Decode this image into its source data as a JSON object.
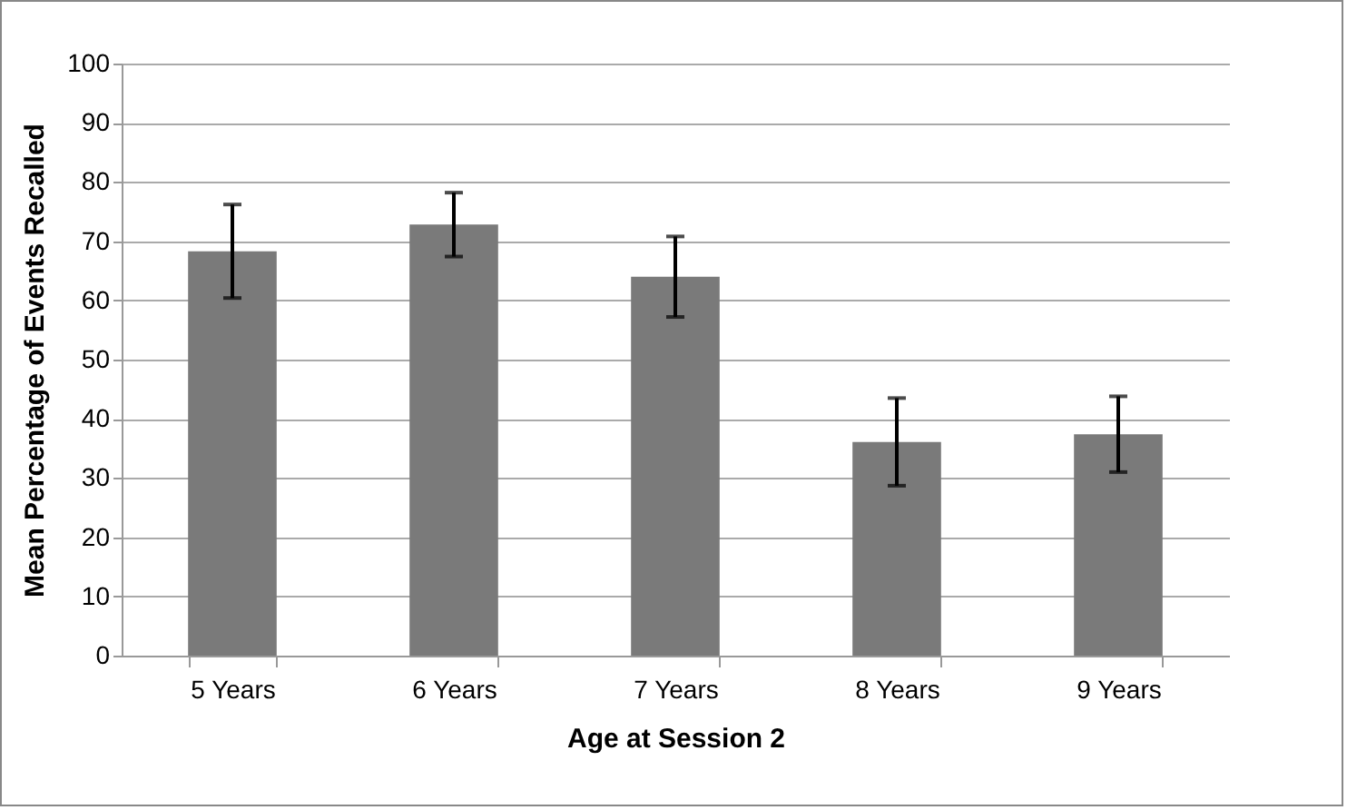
{
  "chart_data": {
    "type": "bar",
    "xlabel": "Age at Session 2",
    "ylabel": "Mean Percentage of Events Recalled",
    "categories": [
      "5 Years",
      "6 Years",
      "7 Years",
      "8 Years",
      "9 Years"
    ],
    "values": [
      68.3,
      72.8,
      64.0,
      36.1,
      37.4
    ],
    "errors": [
      7.9,
      5.4,
      6.8,
      7.4,
      6.4
    ],
    "color": "#7a7a7a",
    "ylim": [
      0,
      100
    ],
    "yticks": [
      0,
      10,
      20,
      30,
      40,
      50,
      60,
      70,
      80,
      90,
      100
    ],
    "grid": "y"
  }
}
